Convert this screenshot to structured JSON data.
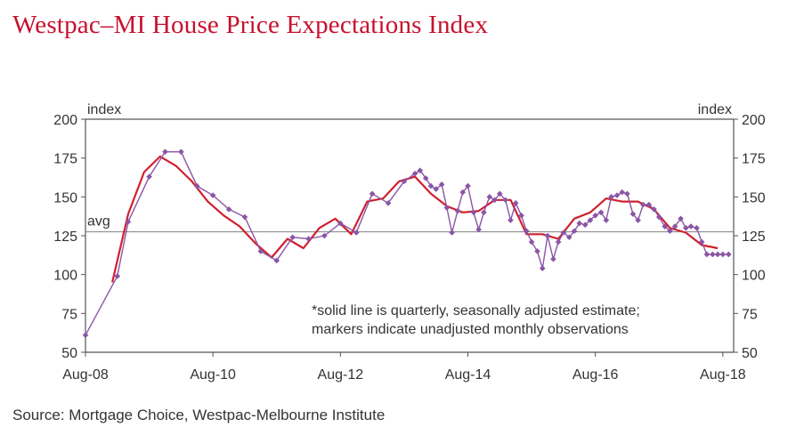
{
  "title": "Westpac–MI House Price Expectations Index",
  "source": "Source: Mortgage Choice, Westpac-Melbourne Institute",
  "chart_data": {
    "type": "line",
    "title": "Westpac–MI House Price Expectations Index",
    "ylabel_left": "index",
    "ylabel_right": "index",
    "ylim": [
      50,
      200
    ],
    "y_ticks": [
      "200",
      "175",
      "150",
      "125",
      "100",
      "75",
      "50"
    ],
    "x_ticks": [
      "Aug-08",
      "Aug-10",
      "Aug-12",
      "Aug-14",
      "Aug-16",
      "Aug-18"
    ],
    "x_range": [
      2008.58,
      2018.75
    ],
    "avg_label": "avg",
    "avg_value": 127.5,
    "grid": false,
    "annotation": [
      "*solid line is quarterly, seasonally adjusted estimate;",
      "markers indicate unadjusted monthly observations"
    ],
    "colors": {
      "monthly": "#8b55a5",
      "quarterly": "#d0202e",
      "avg": "#7f7f7f",
      "axis": "#555555"
    },
    "series": [
      {
        "style": "markers",
        "x": [
          2008.58,
          2009.08,
          2009.25,
          2009.58,
          2009.83,
          2010.08,
          2010.33,
          2010.58,
          2010.83,
          2011.08,
          2011.33,
          2011.58,
          2011.83,
          2012.08,
          2012.33,
          2012.58,
          2012.83,
          2013.08,
          2013.33,
          2013.58,
          2013.75,
          2013.83,
          2013.92,
          2014.0,
          2014.08,
          2014.17,
          2014.25,
          2014.33,
          2014.42,
          2014.5,
          2014.58,
          2014.67,
          2014.75,
          2014.83,
          2014.92,
          2015.0,
          2015.08,
          2015.17,
          2015.25,
          2015.33,
          2015.42,
          2015.5,
          2015.58,
          2015.67,
          2015.75,
          2015.83,
          2015.92,
          2016.0,
          2016.08,
          2016.17,
          2016.25,
          2016.33,
          2016.42,
          2016.5,
          2016.58,
          2016.67,
          2016.75,
          2016.83,
          2016.92,
          2017.0,
          2017.08,
          2017.17,
          2017.25,
          2017.33,
          2017.42,
          2017.5,
          2017.58,
          2017.67,
          2017.75,
          2017.83,
          2017.92,
          2018.0,
          2018.08,
          2018.17,
          2018.25,
          2018.33,
          2018.42,
          2018.5,
          2018.58,
          2018.67
        ],
        "values": [
          61,
          99,
          134,
          163,
          179,
          179,
          157,
          151,
          142,
          137,
          115,
          109,
          124,
          123,
          125,
          133,
          127,
          152,
          146,
          160,
          165,
          167,
          162,
          157,
          155,
          158,
          143,
          127,
          141,
          153,
          157,
          140,
          129,
          140,
          150,
          148,
          152,
          148,
          135,
          146,
          138,
          128,
          121,
          115,
          104,
          125,
          110,
          121,
          127,
          124,
          128,
          133,
          132,
          135,
          138,
          140,
          135,
          150,
          151,
          153,
          152,
          139,
          135,
          145,
          145,
          142,
          137,
          131,
          128,
          131,
          136,
          130,
          131,
          130,
          121,
          113,
          113,
          113,
          113,
          113
        ]
      },
      {
        "style": "line",
        "x": [
          2009.0,
          2009.25,
          2009.5,
          2009.75,
          2010.0,
          2010.25,
          2010.5,
          2010.75,
          2011.0,
          2011.25,
          2011.5,
          2011.75,
          2012.0,
          2012.25,
          2012.5,
          2012.75,
          2013.0,
          2013.25,
          2013.5,
          2013.75,
          2014.0,
          2014.25,
          2014.5,
          2014.75,
          2015.0,
          2015.25,
          2015.5,
          2015.75,
          2016.0,
          2016.25,
          2016.5,
          2016.75,
          2017.0,
          2017.25,
          2017.5,
          2017.75,
          2018.0,
          2018.25,
          2018.5
        ],
        "values": [
          95,
          139,
          166,
          176,
          170,
          160,
          147,
          138,
          131,
          120,
          111,
          123,
          117,
          130,
          136,
          126,
          147,
          149,
          160,
          163,
          152,
          144,
          140,
          141,
          148,
          148,
          126,
          126,
          123,
          136,
          140,
          149,
          147,
          147,
          142,
          130,
          127,
          119,
          117
        ]
      }
    ]
  }
}
